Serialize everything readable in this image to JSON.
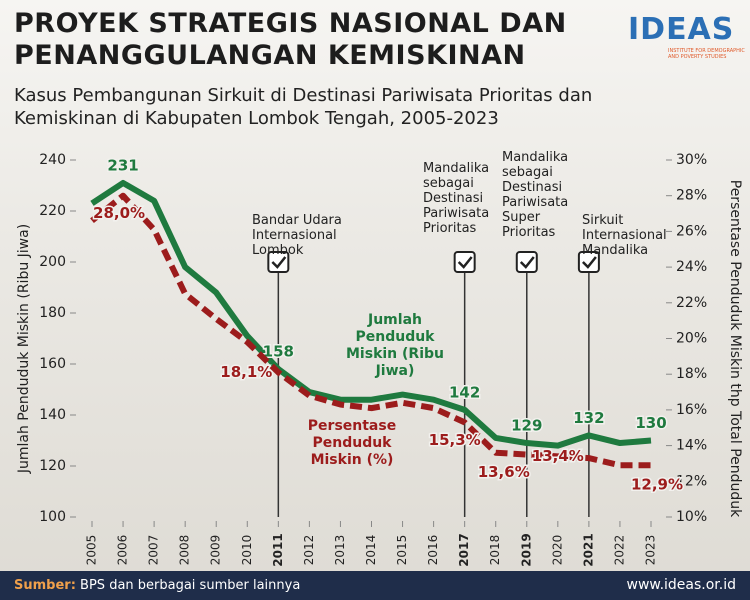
{
  "header": {
    "title": "PROYEK STRATEGIS NASIONAL DAN PENANGGULANGAN KEMISKINAN",
    "subtitle": "Kasus Pembangunan Sirkuit di Destinasi Pariwisata Prioritas dan Kemiskinan di Kabupaten Lombok Tengah, 2005-2023",
    "logo": "IDEAS",
    "logo_subtitle": "INSTITUTE FOR DEMOGRAPHIC AND POVERTY STUDIES"
  },
  "chart_data": {
    "type": "line",
    "x": [
      2005,
      2006,
      2007,
      2008,
      2009,
      2010,
      2011,
      2012,
      2013,
      2014,
      2015,
      2016,
      2017,
      2018,
      2019,
      2020,
      2021,
      2022,
      2023
    ],
    "xlim": [
      2005,
      2023
    ],
    "xticks": [
      2005,
      2006,
      2007,
      2008,
      2009,
      2010,
      2011,
      2012,
      2013,
      2014,
      2015,
      2016,
      2017,
      2018,
      2019,
      2020,
      2021,
      2022,
      2023
    ],
    "ylabel": "Jumlah Penduduk Miskin (Ribu Jiwa)",
    "y2label": "Persentase Penduduk Miskin thp Total Penduduk",
    "ylim": [
      100,
      240
    ],
    "yticks": [
      100,
      120,
      140,
      160,
      180,
      200,
      220,
      240
    ],
    "y2lim": [
      10,
      30
    ],
    "y2ticks": [
      {
        "value": 10,
        "label": "10%"
      },
      {
        "value": 12,
        "label": "12%"
      },
      {
        "value": 14,
        "label": "14%"
      },
      {
        "value": 16,
        "label": "16%"
      },
      {
        "value": 18,
        "label": "18%"
      },
      {
        "value": 20,
        "label": "20%"
      },
      {
        "value": 22,
        "label": "22%"
      },
      {
        "value": 24,
        "label": "24%"
      },
      {
        "value": 26,
        "label": "26%"
      },
      {
        "value": 28,
        "label": "28%"
      },
      {
        "value": 30,
        "label": "30%"
      }
    ],
    "series": [
      {
        "name": "Jumlah Penduduk Miskin (Ribu Jiwa)",
        "color": "#1f7a3f",
        "dash": false,
        "values": [
          223,
          231,
          224,
          198,
          188,
          171,
          158,
          149,
          146,
          146,
          148,
          146,
          142,
          131,
          129,
          128,
          132,
          129,
          130
        ],
        "value_labels": [
          null,
          "231",
          null,
          null,
          null,
          null,
          "158",
          null,
          null,
          null,
          null,
          null,
          "142",
          null,
          "129",
          null,
          "132",
          null,
          "130"
        ]
      },
      {
        "name": "Persentase Penduduk Miskin (%)",
        "color": "#9c1c1c",
        "dash": true,
        "axis": "y2",
        "values": [
          26.6,
          28.0,
          26.1,
          22.5,
          21.1,
          19.8,
          18.1,
          16.8,
          16.3,
          16.1,
          16.4,
          16.1,
          15.3,
          13.6,
          13.5,
          13.4,
          13.3,
          12.9,
          12.9
        ],
        "value_labels": [
          null,
          "28,0%",
          null,
          null,
          null,
          null,
          "18,1%",
          null,
          null,
          null,
          null,
          null,
          "15,3%",
          "13,6%",
          null,
          "13,4%",
          null,
          null,
          "12,9%"
        ]
      }
    ],
    "events": [
      {
        "x": 2011,
        "label": "Bandar Udara Internasional Lombok"
      },
      {
        "x": 2017,
        "label": "Mandalika sebagai Destinasi Pariwisata Prioritas"
      },
      {
        "x": 2019,
        "label": "Mandalika sebagai Destinasi Pariwisata Super Prioritas"
      },
      {
        "x": 2021,
        "label": "Sirkuit Internasional Mandalika"
      }
    ]
  },
  "footer": {
    "source_label": "Sumber:",
    "source": "BPS dan berbagai sumber lainnya",
    "website": "www.ideas.or.id"
  }
}
